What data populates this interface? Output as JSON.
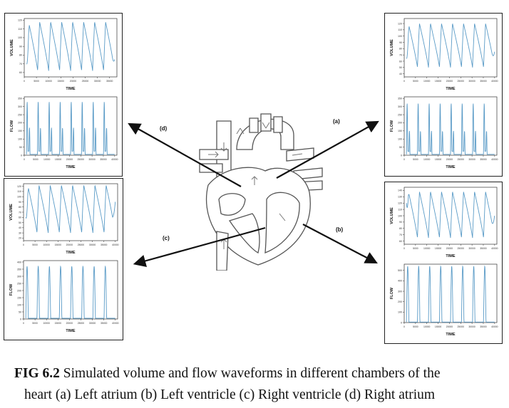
{
  "figure": {
    "caption_id": "FIG 6.2",
    "caption_line1": "Simulated volume and flow waveforms in different chambers of the",
    "caption_line2": "heart (a) Left atrium (b) Left ventricle (c) Right ventricle (d) Right atrium",
    "labels": {
      "a": "(a)",
      "b": "(b)",
      "c": "(c)",
      "d": "(d)"
    }
  },
  "colors": {
    "trace": "#5a9bc7",
    "axis": "#333333",
    "arrow": "#111111",
    "heart_outline": "#555555"
  },
  "chart_data": [
    {
      "id": "d_volume",
      "type": "line",
      "panel": "(d) Right atrium",
      "xlabel": "TIME",
      "ylabel": "VOLUME",
      "xticks": [
        "0",
        "5000",
        "10000",
        "15000",
        "20000",
        "25000",
        "30000",
        "35000"
      ],
      "yticks": [
        "60",
        "70",
        "80",
        "90",
        "100",
        "110",
        "120"
      ],
      "xlim": [
        0,
        38000
      ],
      "ylim": [
        55,
        122
      ],
      "waveform": {
        "kind": "volume",
        "cycles": 8,
        "min": 62,
        "max": 118,
        "start": 70,
        "end": 75
      }
    },
    {
      "id": "d_flow",
      "type": "line",
      "panel": "(d) Right atrium",
      "xlabel": "TIME",
      "ylabel": "FLOW",
      "xticks": [
        "0",
        "5000",
        "10000",
        "15000",
        "20000",
        "25000",
        "30000",
        "35000",
        "40000"
      ],
      "yticks": [
        "0",
        "50",
        "100",
        "150",
        "200",
        "250",
        "300",
        "350"
      ],
      "xlim": [
        0,
        41000
      ],
      "ylim": [
        0,
        360
      ],
      "waveform": {
        "kind": "flow_biphasic",
        "cycles": 8,
        "peak1": 330,
        "peak2": 170,
        "baseline": 5
      }
    },
    {
      "id": "a_volume",
      "type": "line",
      "panel": "(a) Left atrium",
      "xlabel": "TIME",
      "ylabel": "VOLUME",
      "xticks": [
        "0",
        "5000",
        "10000",
        "15000",
        "20000",
        "25000",
        "30000",
        "35000",
        "40000"
      ],
      "yticks": [
        "40",
        "50",
        "60",
        "70",
        "80",
        "90",
        "100",
        "110",
        "120"
      ],
      "xlim": [
        0,
        41000
      ],
      "ylim": [
        35,
        128
      ],
      "waveform": {
        "kind": "volume",
        "cycles": 8,
        "min": 50,
        "max": 120,
        "start": 65,
        "end": 75
      }
    },
    {
      "id": "a_flow",
      "type": "line",
      "panel": "(a) Left atrium",
      "xlabel": "TIME",
      "ylabel": "FLOW",
      "xticks": [
        "0",
        "5000",
        "10000",
        "15000",
        "20000",
        "25000",
        "30000",
        "35000",
        "40000"
      ],
      "yticks": [
        "0",
        "50",
        "100",
        "150",
        "200",
        "250",
        "300",
        "350"
      ],
      "xlim": [
        0,
        41000
      ],
      "ylim": [
        0,
        360
      ],
      "waveform": {
        "kind": "flow_biphasic",
        "cycles": 8,
        "peak1": 320,
        "peak2": 150,
        "baseline": 5
      }
    },
    {
      "id": "c_volume",
      "type": "line",
      "panel": "(c) Right ventricle",
      "xlabel": "TIME",
      "ylabel": "VOLUME",
      "xticks": [
        "0",
        "5000",
        "10000",
        "15000",
        "20000",
        "25000",
        "30000",
        "35000",
        "40000"
      ],
      "yticks": [
        "20",
        "30",
        "40",
        "50",
        "60",
        "70",
        "80",
        "90",
        "100",
        "110",
        "120"
      ],
      "xlim": [
        0,
        41000
      ],
      "ylim": [
        15,
        125
      ],
      "waveform": {
        "kind": "volume",
        "cycles": 8,
        "min": 30,
        "max": 122,
        "start": 60,
        "end": 90
      }
    },
    {
      "id": "c_flow",
      "type": "line",
      "panel": "(c) Right ventricle",
      "xlabel": "TIME",
      "ylabel": "FLOW",
      "xticks": [
        "0",
        "5000",
        "10000",
        "15000",
        "20000",
        "25000",
        "30000",
        "35000",
        "40000"
      ],
      "yticks": [
        "0",
        "50",
        "100",
        "150",
        "200",
        "250",
        "300",
        "350",
        "400"
      ],
      "xlim": [
        0,
        41000
      ],
      "ylim": [
        0,
        410
      ],
      "waveform": {
        "kind": "flow_pulse",
        "cycles": 8,
        "peak": 370,
        "baseline": 5
      }
    },
    {
      "id": "b_volume",
      "type": "line",
      "panel": "(b) Left ventricle",
      "xlabel": "TIME",
      "ylabel": "VOLUME",
      "xticks": [
        "0",
        "5000",
        "10000",
        "15000",
        "20000",
        "25000",
        "30000",
        "35000",
        "40000"
      ],
      "yticks": [
        "60",
        "70",
        "80",
        "90",
        "100",
        "110",
        "120",
        "130",
        "140"
      ],
      "xlim": [
        0,
        41000
      ],
      "ylim": [
        55,
        145
      ],
      "waveform": {
        "kind": "volume",
        "cycles": 8,
        "min": 65,
        "max": 138,
        "start": 120,
        "end": 100
      }
    },
    {
      "id": "b_flow",
      "type": "line",
      "panel": "(b) Left ventricle",
      "xlabel": "TIME",
      "ylabel": "FLOW",
      "xticks": [
        "0",
        "5000",
        "10000",
        "15000",
        "20000",
        "25000",
        "30000",
        "35000",
        "40000"
      ],
      "yticks": [
        "0",
        "100",
        "200",
        "300",
        "400",
        "500"
      ],
      "xlim": [
        0,
        41000
      ],
      "ylim": [
        0,
        560
      ],
      "waveform": {
        "kind": "flow_pulse",
        "cycles": 8,
        "peak": 540,
        "baseline": 5
      }
    }
  ]
}
